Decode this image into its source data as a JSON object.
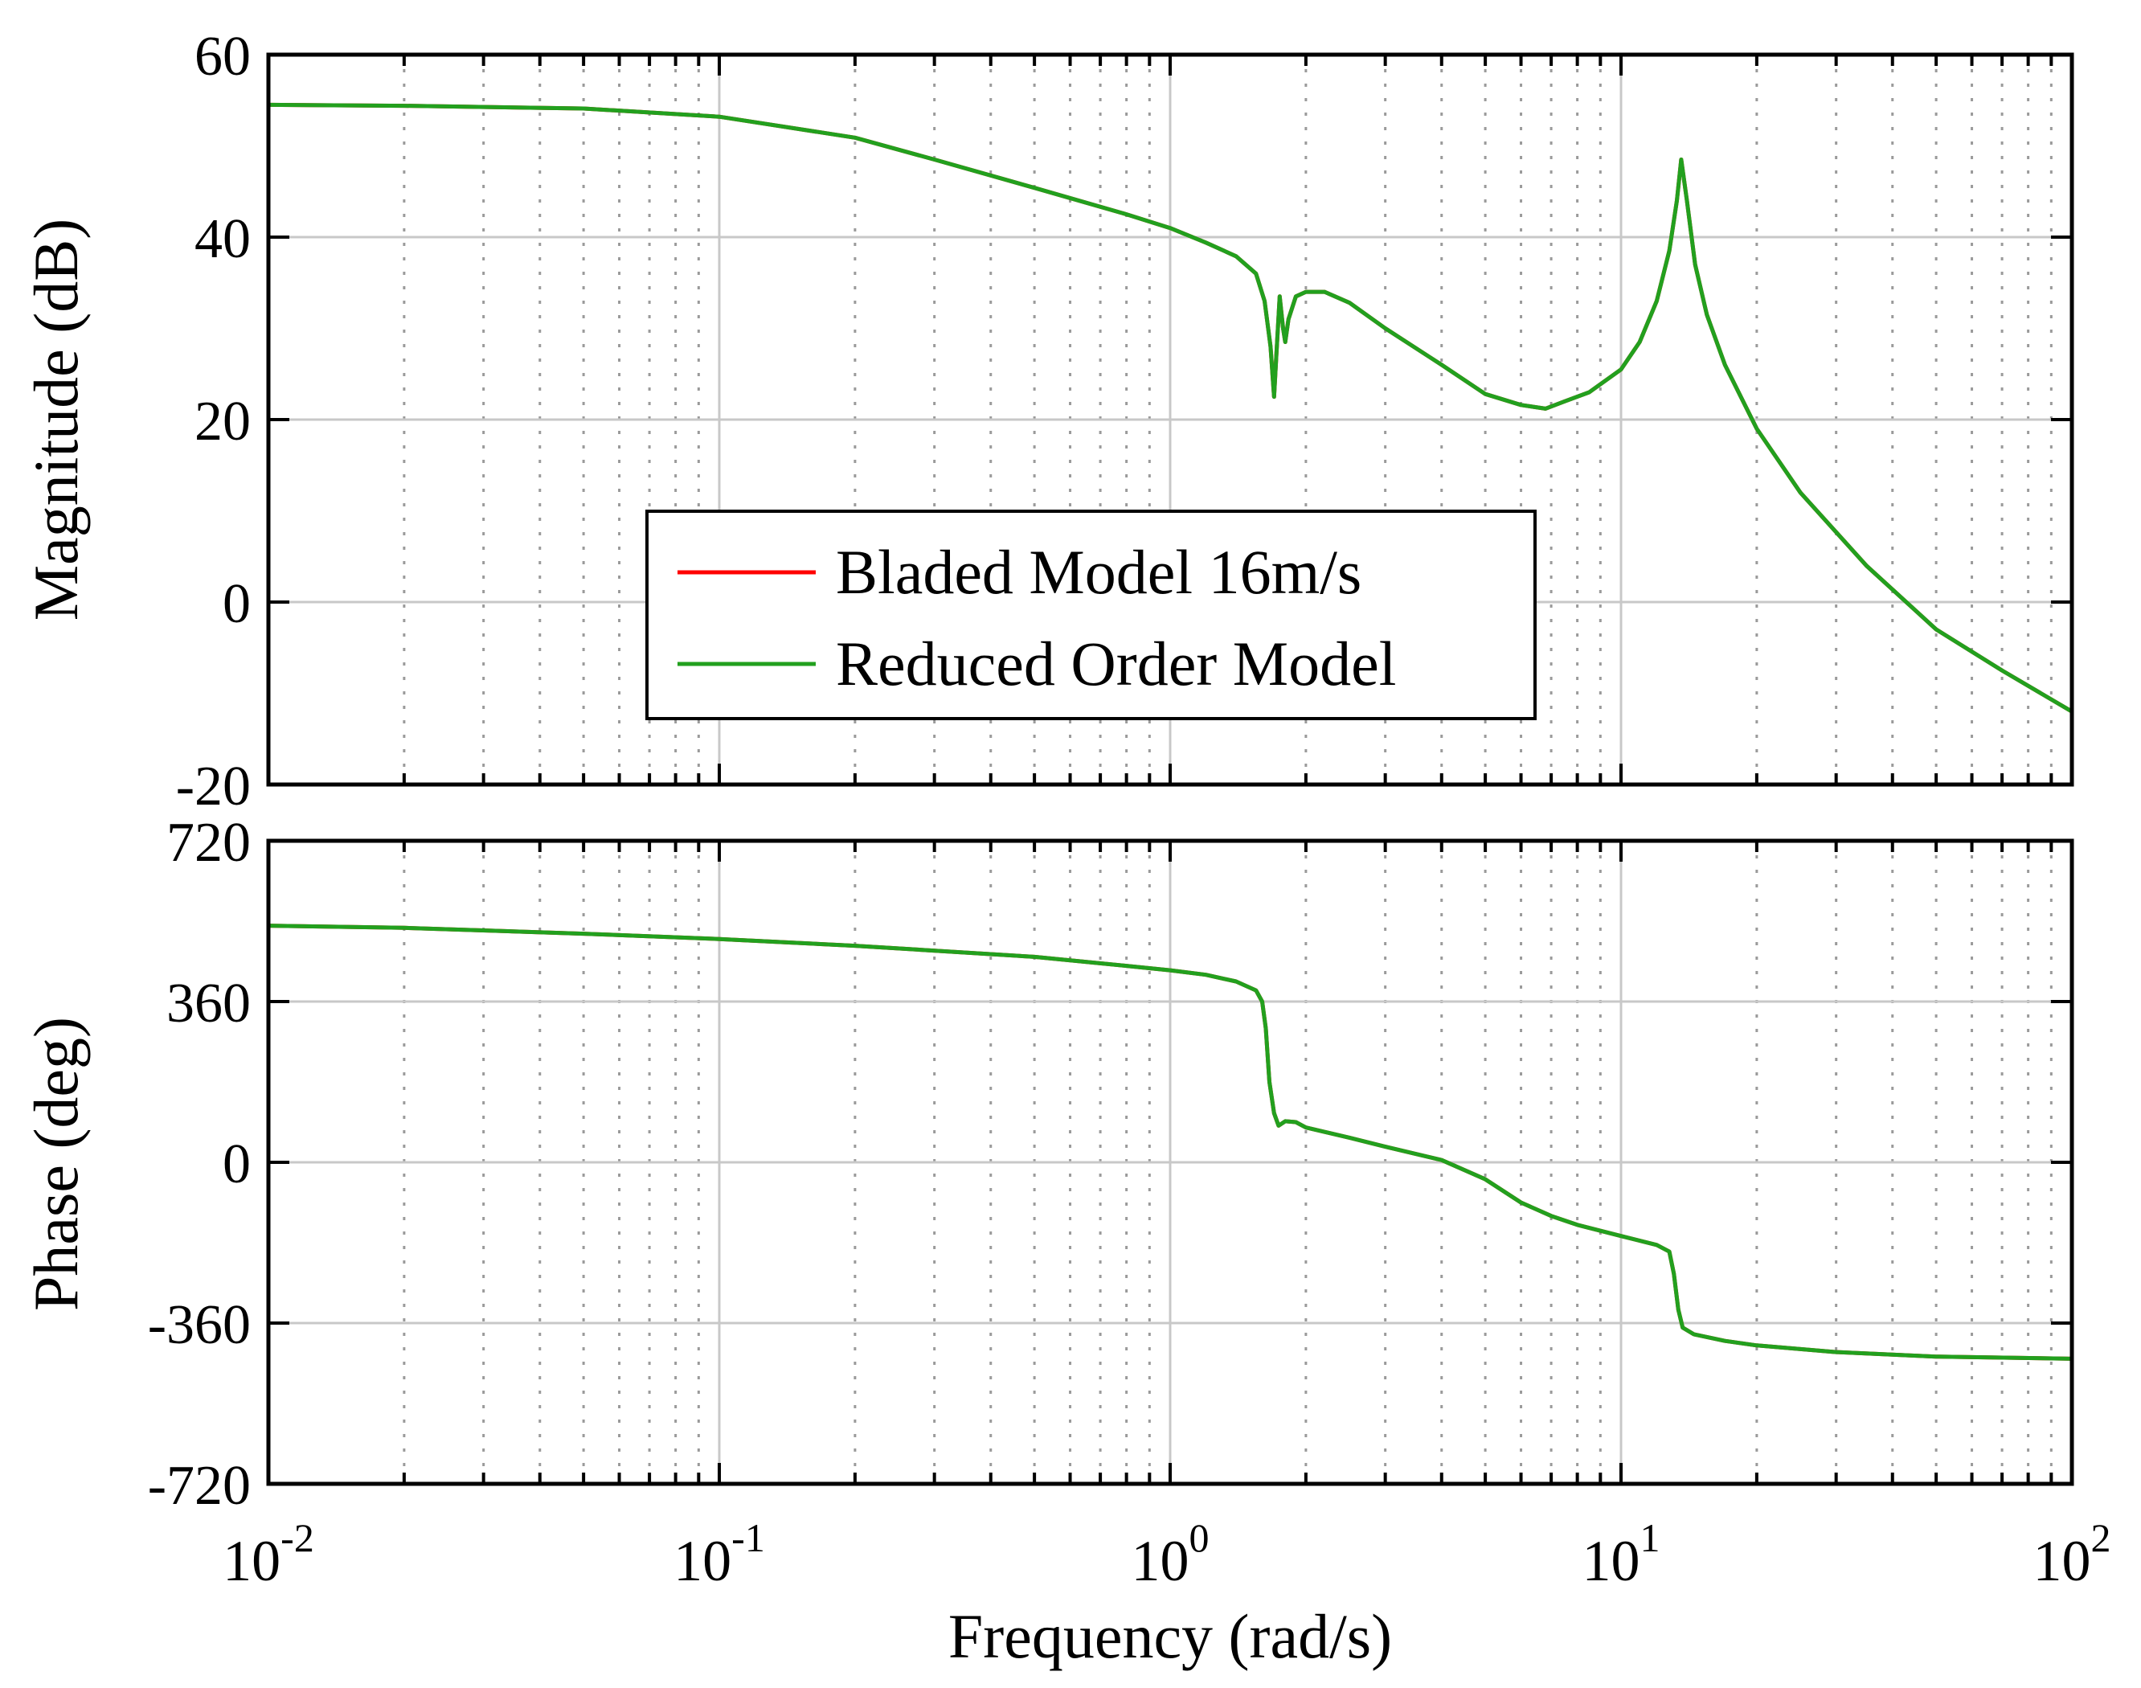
{
  "chart_data": [
    {
      "type": "line",
      "panel": "magnitude",
      "xscale": "log",
      "xlim": [
        0.01,
        100
      ],
      "ylim": [
        -20,
        60
      ],
      "yticks": [
        -20,
        0,
        20,
        40,
        60
      ],
      "ytick_labels": [
        "-20",
        "0",
        "20",
        "40",
        "60"
      ],
      "ylabel": "Magnitude (dB)",
      "grid": true,
      "legend": {
        "placement": "center-left",
        "entries": [
          {
            "label": "Bladed Model 16m/s",
            "color": "#ff0000"
          },
          {
            "label": "Reduced Order Model",
            "color": "#22a01e"
          }
        ]
      },
      "series": [
        {
          "name": "Bladed Model 16m/s",
          "color": "#ff0000",
          "x": [
            0.01,
            0.02,
            0.05,
            0.1,
            0.2,
            0.3,
            0.5,
            0.8,
            1.0,
            1.2,
            1.4,
            1.55,
            1.62,
            1.67,
            1.7,
            1.72,
            1.75,
            1.78,
            1.8,
            1.83,
            1.9,
            2.0,
            2.2,
            2.5,
            3.0,
            4.0,
            5.0,
            6.0,
            6.8,
            7.5,
            8.5,
            10.0,
            11.0,
            12.0,
            12.8,
            13.3,
            13.6,
            14.0,
            14.6,
            15.5,
            17.0,
            20.0,
            25.0,
            35.0,
            50.0,
            70.0,
            100.0
          ],
          "y": [
            54.5,
            54.4,
            54.1,
            53.2,
            50.9,
            48.5,
            45.4,
            42.5,
            41.0,
            39.4,
            37.9,
            36.0,
            33.0,
            28.0,
            22.5,
            27.0,
            33.5,
            30.0,
            28.5,
            31.0,
            33.5,
            34.0,
            34.0,
            32.8,
            30.0,
            26.0,
            22.8,
            21.6,
            21.2,
            22.0,
            23.0,
            25.5,
            28.5,
            33.0,
            38.5,
            44.0,
            48.5,
            44.0,
            37.0,
            31.5,
            26.0,
            19.0,
            12.0,
            4.0,
            -3.0,
            -7.5,
            -12.0
          ]
        },
        {
          "name": "Reduced Order Model",
          "color": "#22a01e",
          "x": [
            0.01,
            0.02,
            0.05,
            0.1,
            0.2,
            0.3,
            0.5,
            0.8,
            1.0,
            1.2,
            1.4,
            1.55,
            1.62,
            1.67,
            1.7,
            1.72,
            1.75,
            1.78,
            1.8,
            1.83,
            1.9,
            2.0,
            2.2,
            2.5,
            3.0,
            4.0,
            5.0,
            6.0,
            6.8,
            7.5,
            8.5,
            10.0,
            11.0,
            12.0,
            12.8,
            13.3,
            13.6,
            14.0,
            14.6,
            15.5,
            17.0,
            20.0,
            25.0,
            35.0,
            50.0,
            70.0,
            100.0
          ],
          "y": [
            54.5,
            54.4,
            54.1,
            53.2,
            50.9,
            48.5,
            45.4,
            42.5,
            41.0,
            39.4,
            37.9,
            36.0,
            33.0,
            28.0,
            22.5,
            27.0,
            33.5,
            30.0,
            28.5,
            31.0,
            33.5,
            34.0,
            34.0,
            32.8,
            30.0,
            26.0,
            22.8,
            21.6,
            21.2,
            22.0,
            23.0,
            25.5,
            28.5,
            33.0,
            38.5,
            44.0,
            48.5,
            44.0,
            37.0,
            31.5,
            26.0,
            19.0,
            12.0,
            4.0,
            -3.0,
            -7.5,
            -12.0
          ]
        }
      ]
    },
    {
      "type": "line",
      "panel": "phase",
      "xscale": "log",
      "xlim": [
        0.01,
        100
      ],
      "ylim": [
        -720,
        720
      ],
      "yticks": [
        -720,
        -360,
        0,
        360,
        720
      ],
      "ytick_labels": [
        "-720",
        "-360",
        "0",
        "360",
        "720"
      ],
      "ylabel": "Phase (deg)",
      "xlabel": "Frequency  (rad/s)",
      "xtick_labels": [
        {
          "value": 0.01,
          "base": "10",
          "exp": "-2"
        },
        {
          "value": 0.1,
          "base": "10",
          "exp": "-1"
        },
        {
          "value": 1,
          "base": "10",
          "exp": "0"
        },
        {
          "value": 10,
          "base": "10",
          "exp": "1"
        },
        {
          "value": 100,
          "base": "10",
          "exp": "2"
        }
      ],
      "grid": true,
      "series": [
        {
          "name": "Bladed Model 16m/s",
          "color": "#ff0000",
          "x": [
            0.01,
            0.02,
            0.05,
            0.1,
            0.2,
            0.5,
            0.8,
            1.0,
            1.2,
            1.4,
            1.55,
            1.6,
            1.63,
            1.66,
            1.7,
            1.74,
            1.8,
            1.9,
            2.0,
            2.5,
            3.0,
            4.0,
            5.0,
            6.0,
            7.0,
            8.0,
            10.0,
            12.0,
            12.8,
            13.1,
            13.4,
            13.7,
            14.5,
            17.0,
            20.0,
            30.0,
            50.0,
            100.0
          ],
          "y": [
            530,
            525,
            512,
            500,
            485,
            460,
            440,
            430,
            420,
            405,
            385,
            360,
            300,
            180,
            110,
            82,
            92,
            90,
            78,
            55,
            35,
            5,
            -38,
            -90,
            -120,
            -140,
            -165,
            -185,
            -200,
            -250,
            -330,
            -370,
            -385,
            -400,
            -410,
            -425,
            -435,
            -440
          ]
        },
        {
          "name": "Reduced Order Model",
          "color": "#22a01e",
          "x": [
            0.01,
            0.02,
            0.05,
            0.1,
            0.2,
            0.5,
            0.8,
            1.0,
            1.2,
            1.4,
            1.55,
            1.6,
            1.63,
            1.66,
            1.7,
            1.74,
            1.8,
            1.9,
            2.0,
            2.5,
            3.0,
            4.0,
            5.0,
            6.0,
            7.0,
            8.0,
            10.0,
            12.0,
            12.8,
            13.1,
            13.4,
            13.7,
            14.5,
            17.0,
            20.0,
            30.0,
            50.0,
            100.0
          ],
          "y": [
            530,
            525,
            512,
            500,
            485,
            460,
            440,
            430,
            420,
            405,
            385,
            360,
            300,
            180,
            110,
            82,
            92,
            90,
            78,
            55,
            35,
            5,
            -38,
            -90,
            -120,
            -140,
            -165,
            -185,
            -200,
            -250,
            -330,
            -370,
            -385,
            -400,
            -410,
            -425,
            -435,
            -440
          ]
        }
      ]
    }
  ]
}
